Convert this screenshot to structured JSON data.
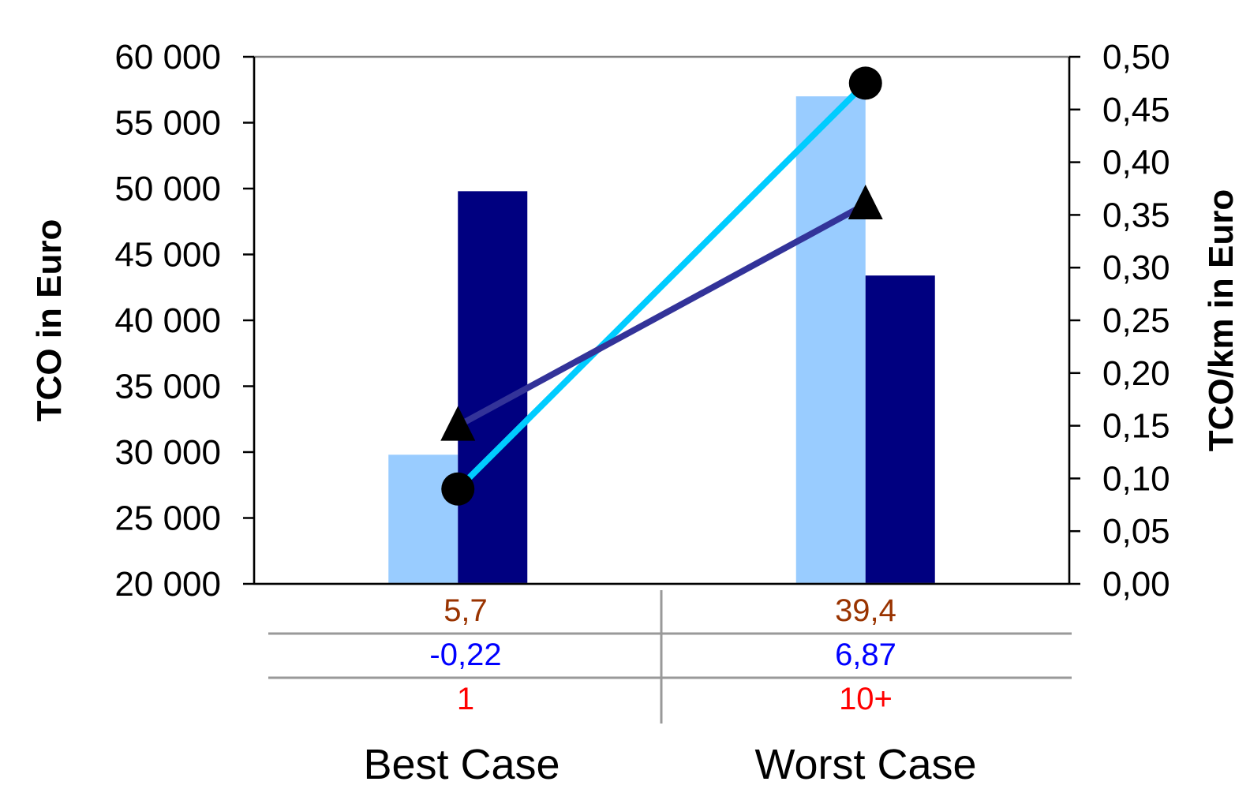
{
  "chart_data": {
    "type": "bar",
    "categories": [
      "Best Case",
      "Worst Case"
    ],
    "series": [
      {
        "axis": "left",
        "kind": "bar",
        "color": "#99ccff",
        "values": [
          29800,
          57000
        ]
      },
      {
        "axis": "left",
        "kind": "bar",
        "color": "#000080",
        "values": [
          49800,
          43400
        ]
      },
      {
        "axis": "right",
        "kind": "line",
        "marker": "circle",
        "color": "#00ccff",
        "values": [
          0.09,
          0.475
        ]
      },
      {
        "axis": "right",
        "kind": "line",
        "marker": "triangle",
        "color": "#333399",
        "values": [
          0.15,
          0.36
        ]
      }
    ],
    "y_left": {
      "label": "TCO in Euro",
      "ylim": [
        20000,
        60000
      ],
      "tick_values": [
        20000,
        25000,
        30000,
        35000,
        40000,
        45000,
        50000,
        55000,
        60000
      ],
      "tick_labels": [
        "20 000",
        "25 000",
        "30 000",
        "35 000",
        "40 000",
        "45 000",
        "50 000",
        "55 000",
        "60 000"
      ]
    },
    "y_right": {
      "label": "TCO/km in Euro",
      "ylim": [
        0,
        0.5
      ],
      "tick_values": [
        0,
        0.05,
        0.1,
        0.15,
        0.2,
        0.25,
        0.3,
        0.35,
        0.4,
        0.45,
        0.5
      ],
      "tick_labels": [
        "0,00",
        "0,05",
        "0,10",
        "0,15",
        "0,20",
        "0,25",
        "0,30",
        "0,35",
        "0,40",
        "0,45",
        "0,50"
      ]
    },
    "table_rows": [
      {
        "color": "#993300",
        "values": [
          "5,7",
          "39,4"
        ]
      },
      {
        "color": "#0000ff",
        "values": [
          "-0,22",
          "6,87"
        ]
      },
      {
        "color": "#ff0000",
        "values": [
          "1",
          "10+"
        ]
      }
    ],
    "grid": false,
    "legend": "none"
  }
}
